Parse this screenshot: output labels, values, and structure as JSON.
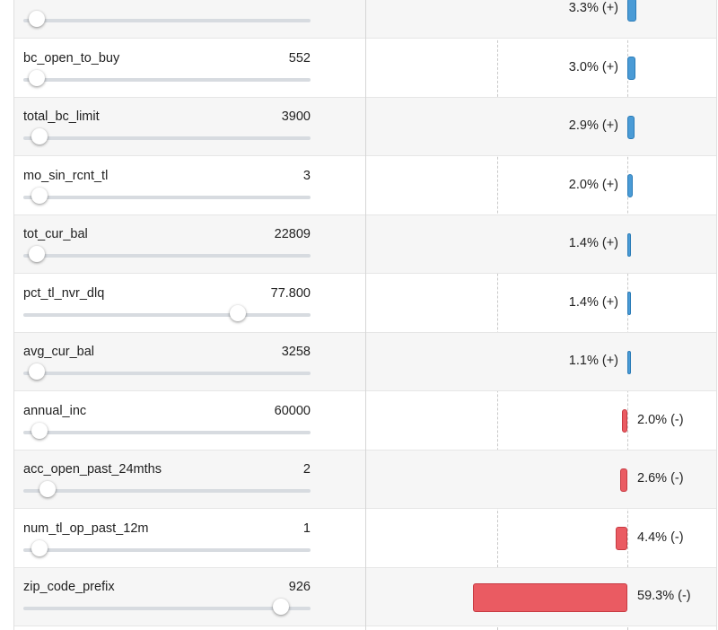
{
  "colors": {
    "positive": "#4a9bd6",
    "negative": "#ea5b62",
    "alt_row": "#f6f6f6",
    "slider_track": "#d7dbe0"
  },
  "rows": [
    {
      "name": "",
      "value": "",
      "slider_fraction": 0.02,
      "contribution": "3.3% (+)",
      "sign": "+",
      "magnitude": 3.3
    },
    {
      "name": "bc_open_to_buy",
      "value": "552",
      "slider_fraction": 0.02,
      "contribution": "3.0% (+)",
      "sign": "+",
      "magnitude": 3.0
    },
    {
      "name": "total_bc_limit",
      "value": "3900",
      "slider_fraction": 0.03,
      "contribution": "2.9% (+)",
      "sign": "+",
      "magnitude": 2.9
    },
    {
      "name": "mo_sin_rcnt_tl",
      "value": "3",
      "slider_fraction": 0.03,
      "contribution": "2.0% (+)",
      "sign": "+",
      "magnitude": 2.0
    },
    {
      "name": "tot_cur_bal",
      "value": "22809",
      "slider_fraction": 0.02,
      "contribution": "1.4% (+)",
      "sign": "+",
      "magnitude": 1.4
    },
    {
      "name": "pct_tl_nvr_dlq",
      "value": "77.800",
      "slider_fraction": 0.76,
      "contribution": "1.4% (+)",
      "sign": "+",
      "magnitude": 1.4
    },
    {
      "name": "avg_cur_bal",
      "value": "3258",
      "slider_fraction": 0.02,
      "contribution": "1.1% (+)",
      "sign": "+",
      "magnitude": 1.1
    },
    {
      "name": "annual_inc",
      "value": "60000",
      "slider_fraction": 0.03,
      "contribution": "2.0% (-)",
      "sign": "-",
      "magnitude": 2.0
    },
    {
      "name": "acc_open_past_24mths",
      "value": "2",
      "slider_fraction": 0.06,
      "contribution": "2.6% (-)",
      "sign": "-",
      "magnitude": 2.6
    },
    {
      "name": "num_tl_op_past_12m",
      "value": "1",
      "slider_fraction": 0.03,
      "contribution": "4.4% (-)",
      "sign": "-",
      "magnitude": 4.4
    },
    {
      "name": "zip_code_prefix",
      "value": "926",
      "slider_fraction": 0.92,
      "contribution": "59.3% (-)",
      "sign": "-",
      "magnitude": 59.3
    }
  ]
}
